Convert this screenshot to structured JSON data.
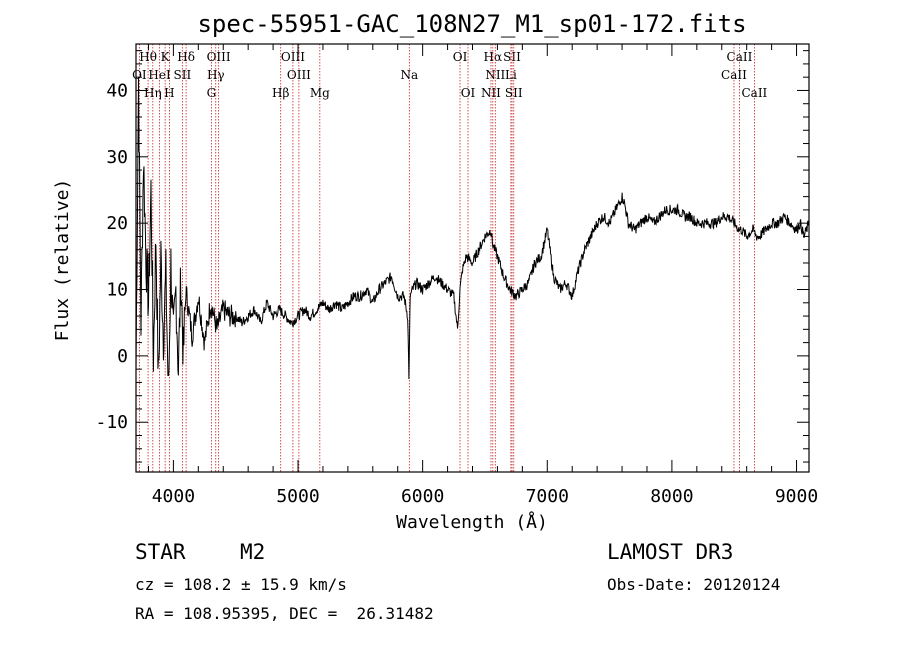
{
  "chart_data": {
    "type": "line",
    "title": "spec-55951-GAC_108N27_M1_sp01-172.fits",
    "xlabel": "Wavelength (Å)",
    "ylabel": "Flux (relative)",
    "xlim": [
      3700,
      9100
    ],
    "ylim": [
      -17.5,
      47
    ],
    "x_ticks": [
      4000,
      5000,
      6000,
      7000,
      8000,
      9000
    ],
    "y_ticks": [
      -10,
      0,
      10,
      20,
      30,
      40
    ],
    "grid": false,
    "series": [
      {
        "name": "spectrum",
        "x": [
          3700,
          3720,
          3740,
          3760,
          3780,
          3800,
          3820,
          3840,
          3860,
          3880,
          3900,
          3920,
          3940,
          3960,
          3980,
          4000,
          4020,
          4040,
          4060,
          4080,
          4100,
          4150,
          4200,
          4250,
          4300,
          4350,
          4400,
          4450,
          4500,
          4550,
          4600,
          4650,
          4700,
          4750,
          4800,
          4850,
          4900,
          4950,
          5000,
          5050,
          5100,
          5150,
          5200,
          5250,
          5300,
          5350,
          5400,
          5450,
          5500,
          5550,
          5600,
          5650,
          5700,
          5750,
          5800,
          5850,
          5880,
          5890,
          5895,
          5900,
          5920,
          5950,
          6000,
          6050,
          6100,
          6150,
          6200,
          6250,
          6280,
          6300,
          6320,
          6350,
          6400,
          6450,
          6500,
          6550,
          6560,
          6580,
          6600,
          6650,
          6700,
          6750,
          6800,
          6850,
          6900,
          6950,
          7000,
          7050,
          7100,
          7150,
          7200,
          7250,
          7300,
          7350,
          7400,
          7450,
          7500,
          7550,
          7600,
          7620,
          7650,
          7700,
          7750,
          7800,
          7850,
          7900,
          7950,
          8000,
          8050,
          8100,
          8150,
          8200,
          8250,
          8300,
          8350,
          8400,
          8450,
          8500,
          8540,
          8560,
          8600,
          8650,
          8680,
          8700,
          8750,
          8800,
          8850,
          8900,
          8950,
          9000,
          9030,
          9060,
          9080,
          9100
        ],
        "values": [
          -2,
          42,
          5,
          30,
          15,
          8,
          25,
          0,
          18,
          -4,
          15,
          3,
          12,
          -6,
          14,
          2,
          10,
          -2,
          12,
          0,
          10,
          3,
          9,
          2,
          8,
          4,
          7,
          6,
          6,
          5,
          6,
          7,
          5,
          8,
          6,
          7,
          6,
          5,
          6,
          7,
          6,
          7,
          8,
          7,
          8,
          7,
          8,
          9,
          9,
          10,
          8,
          10,
          11,
          12,
          9,
          9,
          6,
          -3,
          3,
          9,
          10,
          11,
          10,
          11,
          12,
          11,
          10,
          9,
          4,
          10,
          13,
          15,
          14,
          16,
          18,
          19,
          17,
          16,
          15,
          12,
          10,
          9,
          10,
          11,
          14,
          15,
          19,
          12,
          10,
          11,
          9,
          13,
          16,
          18,
          20,
          21,
          20,
          22,
          24,
          23,
          20,
          19,
          20,
          21,
          20,
          21,
          22,
          22,
          22,
          21,
          21,
          20,
          20,
          20,
          20,
          21,
          21,
          20,
          19,
          19,
          18,
          19,
          18,
          18,
          19,
          20,
          20,
          21,
          20,
          19,
          20,
          18,
          19,
          20
        ]
      }
    ],
    "spectral_lines": [
      {
        "name": "Hθ",
        "x": 3797,
        "row": 0
      },
      {
        "name": "K",
        "x": 3934,
        "row": 0
      },
      {
        "name": "Hδ",
        "x": 4102,
        "row": 0
      },
      {
        "name": "OIII",
        "x": 4363,
        "row": 0
      },
      {
        "name": "OIII",
        "x": 4959,
        "row": 0
      },
      {
        "name": "OI",
        "x": 6300,
        "row": 0
      },
      {
        "name": "Hα",
        "x": 6563,
        "row": 0
      },
      {
        "name": "SII",
        "x": 6717,
        "row": 0
      },
      {
        "name": "CaII",
        "x": 8542,
        "row": 0
      },
      {
        "name": "OI",
        "x": 3727,
        "row": 1
      },
      {
        "name": "HeI",
        "x": 3889,
        "row": 1
      },
      {
        "name": "SII",
        "x": 4072,
        "row": 1
      },
      {
        "name": "Hγ",
        "x": 4340,
        "row": 1
      },
      {
        "name": "OIII",
        "x": 5007,
        "row": 1
      },
      {
        "name": "Na",
        "x": 5893,
        "row": 1
      },
      {
        "name": "NII",
        "x": 6583,
        "row": 1
      },
      {
        "name": "Li",
        "x": 6708,
        "row": 1
      },
      {
        "name": "CaII",
        "x": 8498,
        "row": 1
      },
      {
        "name": "Hη",
        "x": 3835,
        "row": 2
      },
      {
        "name": "H",
        "x": 3968,
        "row": 2
      },
      {
        "name": "G",
        "x": 4305,
        "row": 2
      },
      {
        "name": "Hβ",
        "x": 4861,
        "row": 2
      },
      {
        "name": "Mg",
        "x": 5175,
        "row": 2
      },
      {
        "name": "OI",
        "x": 6364,
        "row": 2
      },
      {
        "name": "NII",
        "x": 6548,
        "row": 2
      },
      {
        "name": "SII",
        "x": 6731,
        "row": 2
      },
      {
        "name": "CaII",
        "x": 8662,
        "row": 2
      }
    ]
  },
  "info": {
    "object_class": "STAR",
    "subclass": "M2",
    "survey": "LAMOST DR3",
    "cz": "cz = 108.2 ± 15.9 km/s",
    "obs_date": "Obs-Date: 20120124",
    "coords": "RA = 108.95395, DEC =  26.31482"
  }
}
